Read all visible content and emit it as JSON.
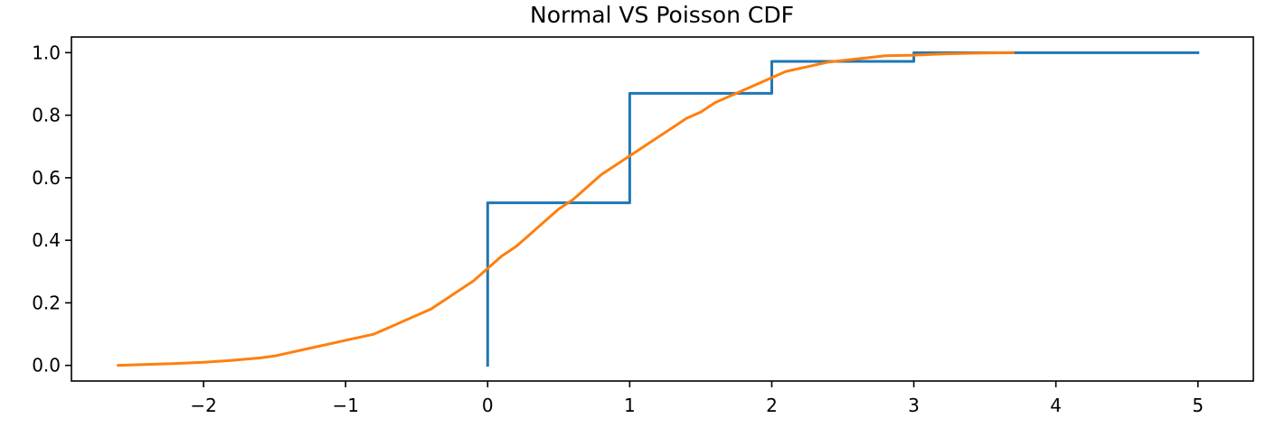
{
  "chart_data": {
    "type": "line",
    "title": "Normal VS Poisson CDF",
    "xlabel": "",
    "ylabel": "",
    "xlim": [
      -2.93,
      5.39
    ],
    "ylim": [
      -0.05,
      1.05
    ],
    "grid": false,
    "legend": "none",
    "x_ticks": [
      -2,
      -1,
      0,
      1,
      2,
      3,
      4,
      5
    ],
    "x_tick_labels": [
      "−2",
      "−1",
      "0",
      "1",
      "2",
      "3",
      "4",
      "5"
    ],
    "y_ticks": [
      0.0,
      0.2,
      0.4,
      0.6,
      0.8,
      1.0
    ],
    "y_tick_labels": [
      "0.0",
      "0.2",
      "0.4",
      "0.6",
      "0.8",
      "1.0"
    ],
    "series": [
      {
        "color": "#1f77b4",
        "kind": "step",
        "x": [
          0,
          0,
          1,
          1,
          2,
          2,
          3,
          3,
          5
        ],
        "y": [
          0.0,
          0.52,
          0.52,
          0.87,
          0.87,
          0.972,
          0.972,
          1.0,
          1.0
        ]
      },
      {
        "color": "#ff7f0e",
        "kind": "line",
        "x": [
          -2.6,
          -2.4,
          -2.2,
          -2.0,
          -1.8,
          -1.6,
          -1.5,
          -1.4,
          -1.2,
          -1.0,
          -0.8,
          -0.7,
          -0.6,
          -0.5,
          -0.4,
          -0.3,
          -0.2,
          -0.1,
          0.0,
          0.1,
          0.2,
          0.3,
          0.4,
          0.5,
          0.6,
          0.7,
          0.8,
          0.9,
          1.0,
          1.1,
          1.2,
          1.3,
          1.4,
          1.5,
          1.6,
          1.7,
          1.8,
          1.9,
          2.0,
          2.1,
          2.2,
          2.4,
          2.6,
          2.8,
          3.0,
          3.2,
          3.4,
          3.7
        ],
        "y": [
          0.0,
          0.003,
          0.006,
          0.01,
          0.016,
          0.024,
          0.03,
          0.04,
          0.06,
          0.08,
          0.1,
          0.12,
          0.14,
          0.16,
          0.18,
          0.21,
          0.24,
          0.27,
          0.31,
          0.35,
          0.38,
          0.42,
          0.46,
          0.5,
          0.53,
          0.57,
          0.61,
          0.64,
          0.67,
          0.7,
          0.73,
          0.76,
          0.79,
          0.81,
          0.84,
          0.86,
          0.88,
          0.9,
          0.92,
          0.94,
          0.95,
          0.97,
          0.98,
          0.99,
          0.992,
          0.996,
          0.998,
          1.0
        ]
      }
    ]
  }
}
